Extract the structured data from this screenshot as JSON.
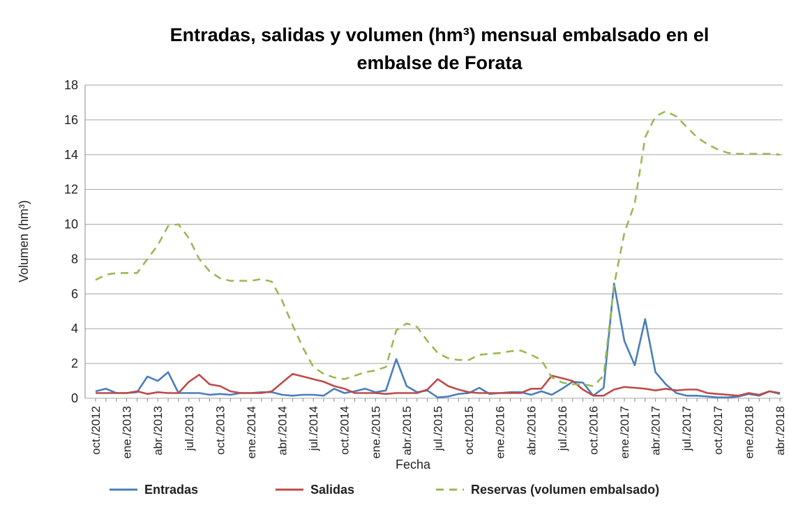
{
  "chart_data": {
    "type": "line",
    "title": "Entradas, salidas y volumen (hm³) mensual embalsado en el embalse de Forata",
    "x_label": "Fecha",
    "y_label": "Volumen (hm³)",
    "categories": [
      "oct./2012",
      null,
      null,
      "ene./2013",
      null,
      null,
      "abr./2013",
      null,
      null,
      "jul./2013",
      null,
      null,
      "oct./2013",
      null,
      null,
      "ene./2014",
      null,
      null,
      "abr./2014",
      null,
      null,
      "jul./2014",
      null,
      null,
      "oct./2014",
      null,
      null,
      "ene./2015",
      null,
      null,
      "abr./2015",
      null,
      null,
      "jul./2015",
      null,
      null,
      "oct./2015",
      null,
      null,
      "ene./2016",
      null,
      null,
      "abr./2016",
      null,
      null,
      "jul./2016",
      null,
      null,
      "oct./2016",
      null,
      null,
      "ene./2017",
      null,
      null,
      "abr./2017",
      null,
      null,
      "jul./2017",
      null,
      null,
      "oct./2017",
      null,
      null,
      "ene./2018",
      null,
      null,
      "abr./2018"
    ],
    "series": [
      {
        "name": "Entradas",
        "color": "#4a7ebb",
        "dashed": false,
        "values": [
          0.4,
          0.55,
          0.3,
          0.3,
          0.35,
          1.25,
          1.0,
          1.5,
          0.3,
          0.3,
          0.3,
          0.2,
          0.25,
          0.2,
          0.3,
          0.3,
          0.35,
          0.35,
          0.2,
          0.15,
          0.2,
          0.2,
          0.15,
          0.55,
          0.3,
          0.4,
          0.55,
          0.35,
          0.45,
          2.25,
          0.7,
          0.35,
          0.45,
          0.05,
          0.1,
          0.25,
          0.3,
          0.6,
          0.25,
          0.3,
          0.35,
          0.35,
          0.2,
          0.4,
          0.2,
          0.55,
          0.95,
          0.9,
          0.15,
          0.6,
          6.6,
          3.3,
          1.9,
          4.55,
          1.5,
          0.8,
          0.3,
          0.15,
          0.15,
          0.1,
          0.05,
          0.05,
          0.1,
          0.25,
          0.15,
          0.4,
          0.25
        ]
      },
      {
        "name": "Salidas",
        "color": "#be4b48",
        "dashed": false,
        "values": [
          0.3,
          0.3,
          0.3,
          0.3,
          0.4,
          0.25,
          0.35,
          0.3,
          0.3,
          0.95,
          1.35,
          0.8,
          0.7,
          0.4,
          0.3,
          0.3,
          0.3,
          0.4,
          0.9,
          1.4,
          1.25,
          1.1,
          0.95,
          0.7,
          0.55,
          0.3,
          0.3,
          0.3,
          0.25,
          0.3,
          0.3,
          0.3,
          0.5,
          1.1,
          0.7,
          0.5,
          0.35,
          0.3,
          0.3,
          0.3,
          0.3,
          0.3,
          0.55,
          0.55,
          1.3,
          1.15,
          1.0,
          0.5,
          0.15,
          0.15,
          0.5,
          0.65,
          0.6,
          0.55,
          0.45,
          0.55,
          0.45,
          0.5,
          0.5,
          0.3,
          0.25,
          0.2,
          0.15,
          0.3,
          0.2,
          0.4,
          0.3
        ]
      },
      {
        "name": "Reservas (volumen embalsado)",
        "color": "#98b954",
        "dashed": true,
        "values": [
          6.8,
          7.1,
          7.2,
          7.2,
          7.2,
          8.0,
          8.8,
          9.9,
          10.0,
          9.2,
          8.0,
          7.3,
          6.9,
          6.75,
          6.75,
          6.75,
          6.85,
          6.7,
          5.6,
          4.2,
          2.9,
          1.8,
          1.4,
          1.2,
          1.1,
          1.3,
          1.5,
          1.6,
          1.8,
          3.9,
          4.3,
          4.1,
          3.3,
          2.6,
          2.3,
          2.2,
          2.2,
          2.5,
          2.55,
          2.6,
          2.7,
          2.75,
          2.5,
          2.2,
          1.2,
          0.9,
          0.8,
          0.8,
          0.7,
          1.3,
          6.5,
          9.5,
          11.2,
          15.0,
          16.2,
          16.5,
          16.2,
          15.6,
          15.0,
          14.6,
          14.3,
          14.1,
          14.05,
          14.05,
          14.05,
          14.05,
          14.0
        ]
      }
    ],
    "ylim": [
      0,
      18
    ],
    "yticks": [
      0,
      2,
      4,
      6,
      8,
      10,
      12,
      14,
      16,
      18
    ],
    "grid": true,
    "legend": "bottom"
  }
}
